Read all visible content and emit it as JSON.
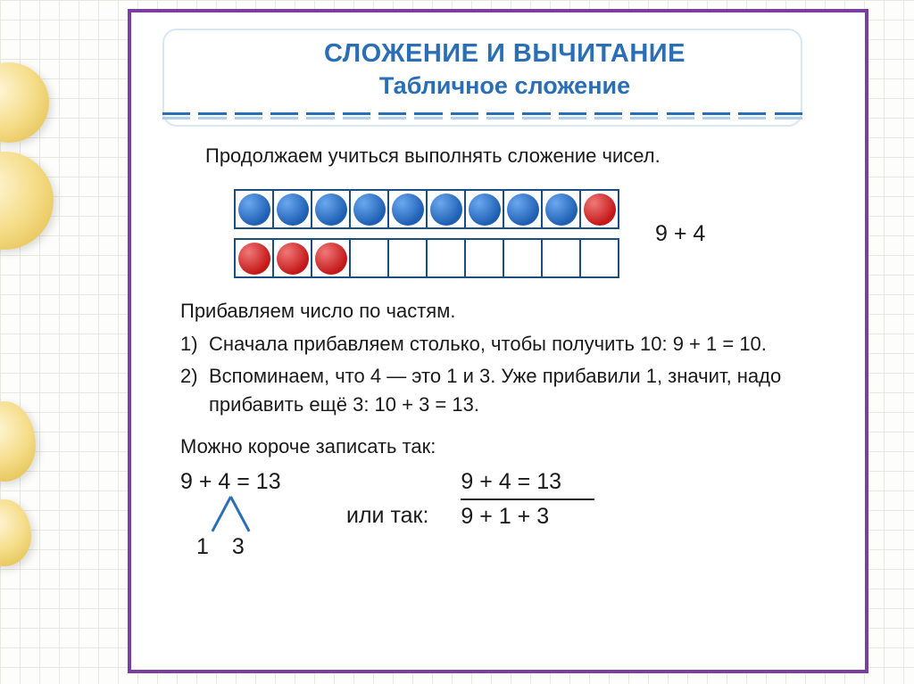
{
  "decor": {
    "circle_color_inner": "#fff6d8",
    "circle_color_mid": "#f5dd8a",
    "circle_color_outer": "#e8c860"
  },
  "panel": {
    "border_color": "#7b3fa0",
    "bg_color": "#ffffff"
  },
  "title": {
    "line1": "СЛОЖЕНИЕ И ВЫЧИТАНИЕ",
    "line2": "Табличное  сложение",
    "color": "#2a6fb5",
    "fontsize1": 29,
    "fontsize2": 27,
    "dash_segments": 18,
    "dash_color_dark": "#2a6fb5",
    "dash_color_light": "#b3cfe6"
  },
  "intro": "Продолжаем учиться выполнять сложение чисел.",
  "manipulative": {
    "row1": [
      "blue",
      "blue",
      "blue",
      "blue",
      "blue",
      "blue",
      "blue",
      "blue",
      "blue",
      "red"
    ],
    "row2": [
      "red",
      "red",
      "red",
      "",
      "",
      "",
      "",
      "",
      "",
      ""
    ],
    "cell_size": 45,
    "cell_border_color": "#1a4d80",
    "dot_blue": "#1e5fb3",
    "dot_red": "#c41818",
    "expression": "9 + 4"
  },
  "lead": "Прибавляем число по частям.",
  "steps": [
    {
      "num": "1)",
      "text": "Сначала прибавляем столько, чтобы получить 10:   9 + 1 = 10."
    },
    {
      "num": "2)",
      "text": "Вспоминаем, что 4 — это 1 и 3. Уже прибавили 1, значит, надо прибавить ещё 3:   10 + 3 = 13."
    }
  ],
  "short_label": "Можно короче записать так:",
  "tree": {
    "top": "9 + 4 = 13",
    "legs_from_digit": "4",
    "bottom_left": "1",
    "bottom_right": "3",
    "line_color": "#2a6fb5"
  },
  "or_label": "или так:",
  "stacked": {
    "top": "9 + 4 = 13",
    "bottom": "9 + 1 + 3"
  },
  "body_font_size": 22,
  "expr_font_size": 25,
  "text_color": "#1a1a1a"
}
